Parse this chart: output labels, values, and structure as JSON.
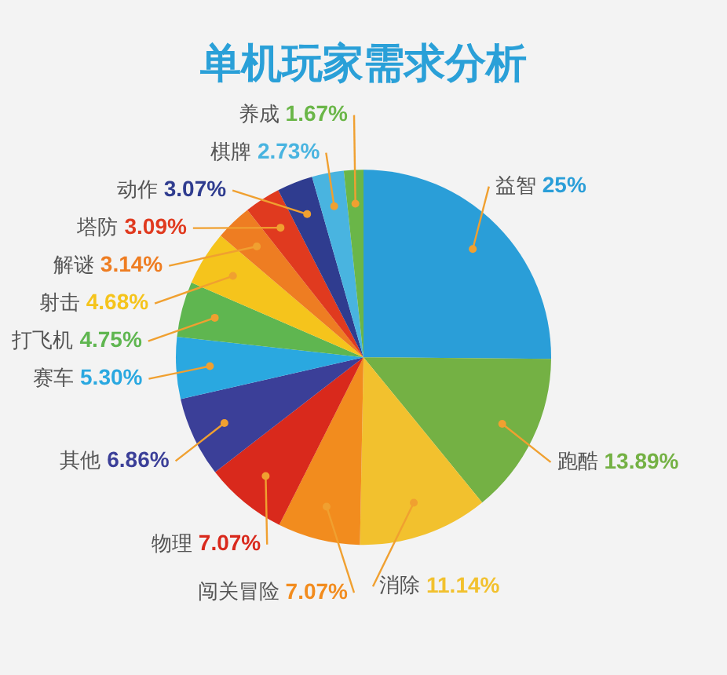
{
  "chart_data": {
    "type": "pie",
    "title": "单机玩家需求分析",
    "categories": [
      "益智",
      "跑酷",
      "消除",
      "闯关冒险",
      "物理",
      "其他",
      "赛车",
      "打飞机",
      "射击",
      "解谜",
      "塔防",
      "动作",
      "棋牌",
      "养成"
    ],
    "values": [
      25,
      13.89,
      11.14,
      7.07,
      7.07,
      6.86,
      5.3,
      4.75,
      4.68,
      3.14,
      3.09,
      3.07,
      2.73,
      1.67
    ],
    "value_labels": [
      "25%",
      "13.89%",
      "11.14%",
      "7.07%",
      "7.07%",
      "6.86%",
      "5.30%",
      "4.75%",
      "4.68%",
      "3.14%",
      "3.09%",
      "3.07%",
      "2.73%",
      "1.67%"
    ],
    "colors": [
      "#2a9ed8",
      "#74b144",
      "#f2c12e",
      "#f28c1e",
      "#d9291c",
      "#3b3f98",
      "#2aa8e0",
      "#5fb650",
      "#f5c41c",
      "#ee7d22",
      "#e03a1f",
      "#2f3c8f",
      "#49b4e0",
      "#6ab648"
    ],
    "legend": false
  }
}
